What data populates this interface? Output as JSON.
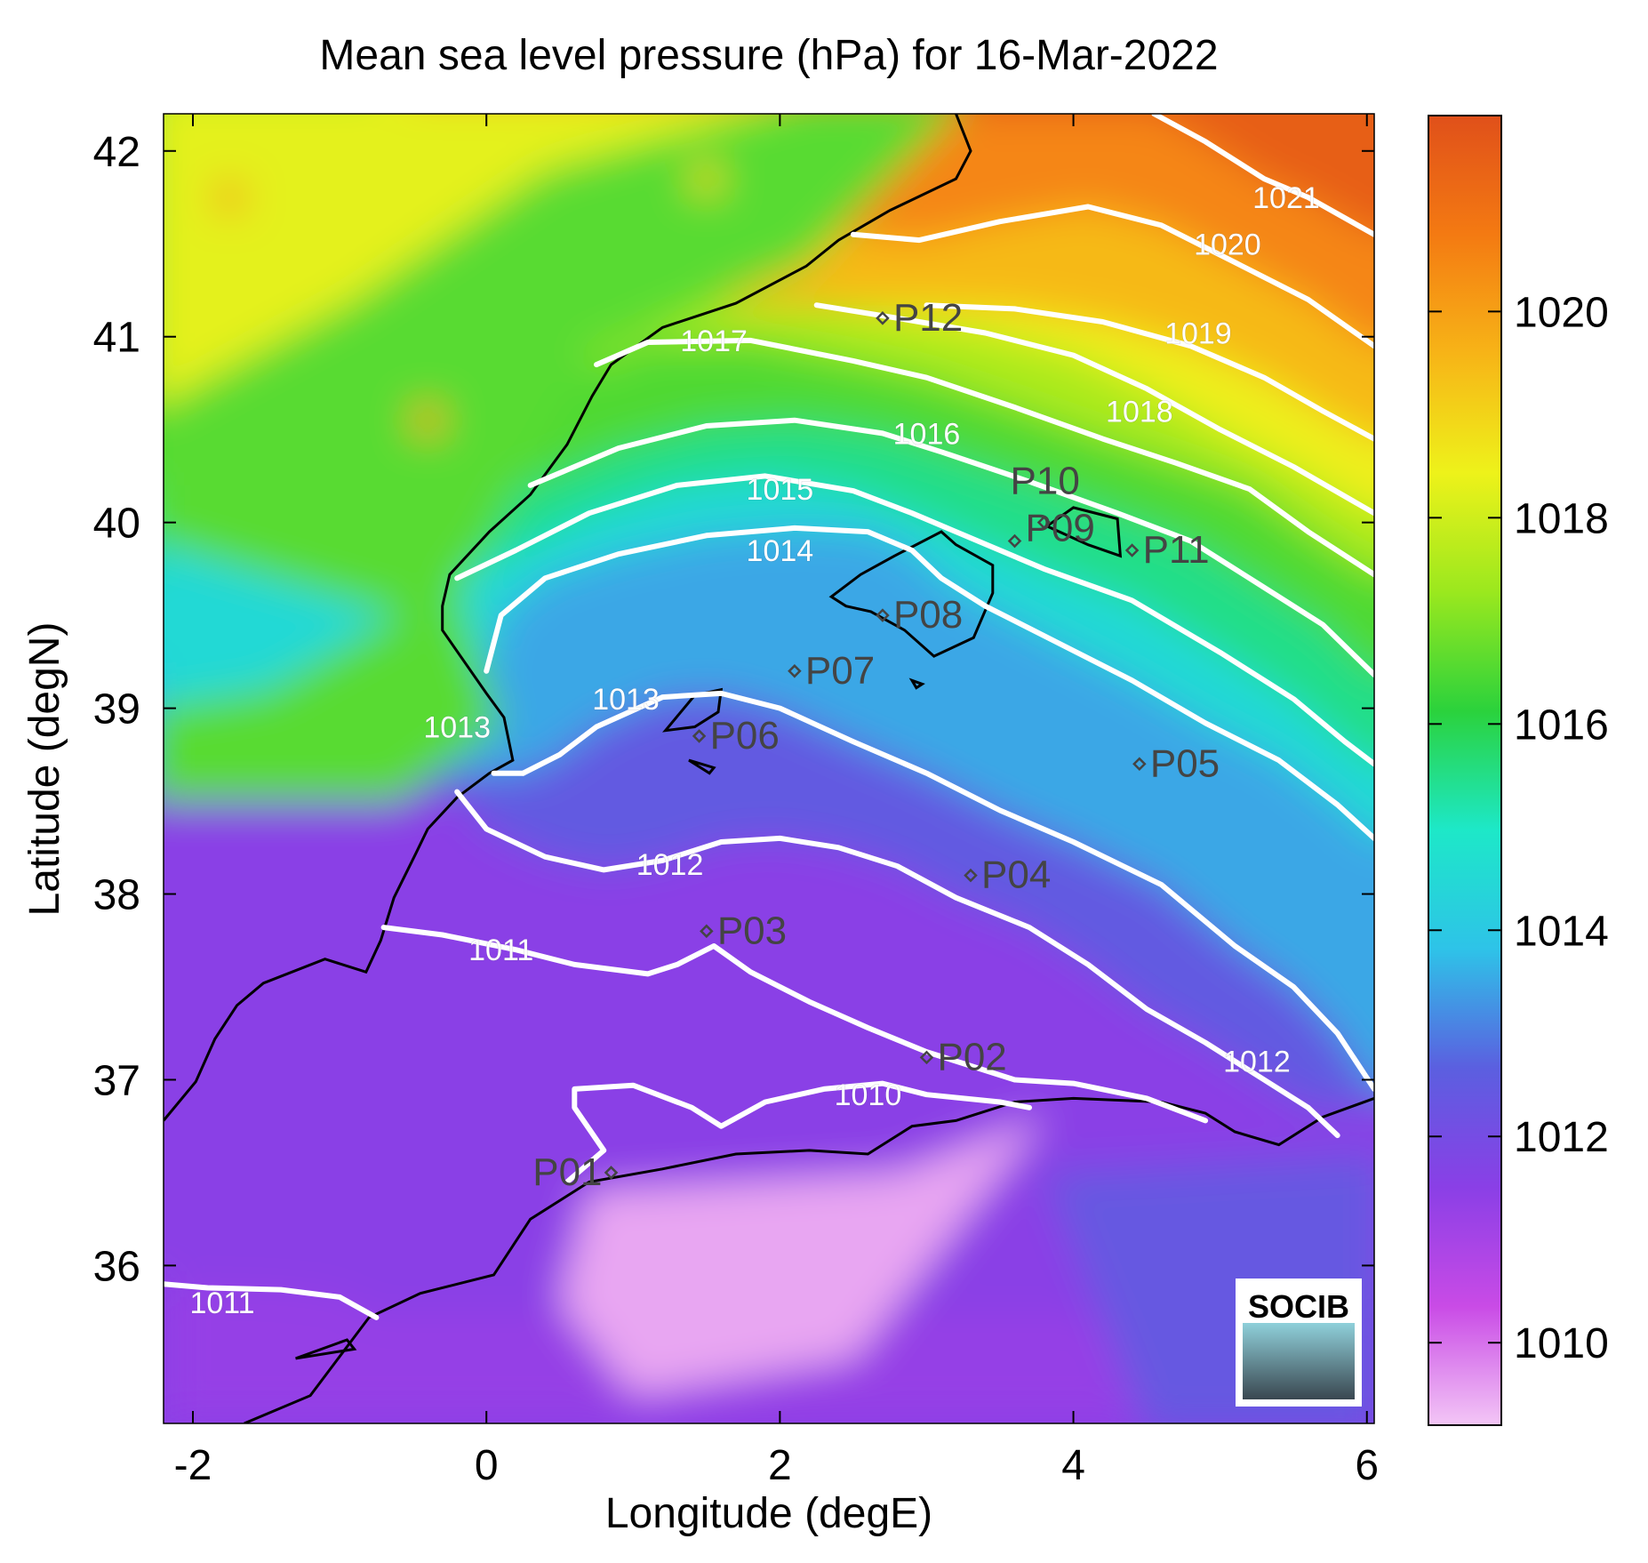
{
  "title": "Mean sea level pressure (hPa) for 16-Mar-2022",
  "chart_data": {
    "type": "heatmap",
    "title": "Mean sea level pressure (hPa) for 16-Mar-2022",
    "xlabel": "Longitude (degE)",
    "ylabel": "Latitude (degN)",
    "xlim": [
      -2.2,
      6.05
    ],
    "ylim": [
      35.15,
      42.2
    ],
    "x_ticks": [
      -2,
      0,
      2,
      4,
      6
    ],
    "x_tick_labels": [
      "-2",
      "0",
      "2",
      "4",
      "6"
    ],
    "y_ticks": [
      36,
      37,
      38,
      39,
      40,
      41,
      42
    ],
    "y_tick_labels": [
      "36",
      "37",
      "38",
      "39",
      "40",
      "41",
      "42"
    ],
    "colorbar": {
      "range": [
        1009.2,
        1021.9
      ],
      "ticks": [
        1010,
        1012,
        1014,
        1016,
        1018,
        1020
      ],
      "tick_labels": [
        "1010",
        "1012",
        "1014",
        "1016",
        "1018",
        "1020"
      ],
      "colormap": [
        "#f3c6f6",
        "#c94be6",
        "#8a3fe6",
        "#5b5fe0",
        "#2ec3e8",
        "#1de8c8",
        "#2bd23c",
        "#9be81e",
        "#eef21a",
        "#f7b417",
        "#f47a12",
        "#e0501a"
      ]
    },
    "grid": false,
    "stations": [
      {
        "name": "P01",
        "lon": 0.85,
        "lat": 36.5
      },
      {
        "name": "P02",
        "lon": 3.0,
        "lat": 37.12
      },
      {
        "name": "P03",
        "lon": 1.5,
        "lat": 37.8
      },
      {
        "name": "P04",
        "lon": 3.3,
        "lat": 38.1
      },
      {
        "name": "P05",
        "lon": 4.45,
        "lat": 38.7
      },
      {
        "name": "P06",
        "lon": 1.45,
        "lat": 38.85
      },
      {
        "name": "P07",
        "lon": 2.1,
        "lat": 39.2
      },
      {
        "name": "P08",
        "lon": 2.7,
        "lat": 39.5
      },
      {
        "name": "P09",
        "lon": 3.6,
        "lat": 39.9
      },
      {
        "name": "P10",
        "lon": 3.8,
        "lat": 40.0
      },
      {
        "name": "P11",
        "lon": 4.4,
        "lat": 39.85
      },
      {
        "name": "P12",
        "lon": 2.7,
        "lat": 41.1
      }
    ],
    "contours": [
      {
        "level": "1010",
        "label_lon": 2.6,
        "label_lat": 36.92,
        "points": [
          [
            0.55,
            36.45
          ],
          [
            0.8,
            36.62
          ],
          [
            0.6,
            36.85
          ],
          [
            0.6,
            36.95
          ],
          [
            1.0,
            36.97
          ],
          [
            1.4,
            36.85
          ],
          [
            1.6,
            36.75
          ],
          [
            1.9,
            36.88
          ],
          [
            2.3,
            36.95
          ],
          [
            2.7,
            36.98
          ],
          [
            3.0,
            36.92
          ],
          [
            3.5,
            36.88
          ],
          [
            3.7,
            36.85
          ]
        ]
      },
      {
        "level": "1011",
        "label_lon": 0.1,
        "label_lat": 37.7,
        "points": [
          [
            -0.7,
            37.82
          ],
          [
            -0.3,
            37.78
          ],
          [
            0.2,
            37.7
          ],
          [
            0.6,
            37.62
          ],
          [
            1.1,
            37.57
          ],
          [
            1.3,
            37.62
          ],
          [
            1.55,
            37.72
          ],
          [
            1.8,
            37.58
          ],
          [
            2.2,
            37.42
          ],
          [
            2.6,
            37.28
          ],
          [
            3.0,
            37.15
          ],
          [
            3.6,
            37.0
          ],
          [
            4.0,
            36.98
          ],
          [
            4.5,
            36.9
          ],
          [
            4.9,
            36.78
          ]
        ]
      },
      {
        "level": "1011",
        "label_lon": -1.8,
        "label_lat": 35.8,
        "points": [
          [
            -2.2,
            35.9
          ],
          [
            -1.9,
            35.88
          ],
          [
            -1.4,
            35.87
          ],
          [
            -1.0,
            35.83
          ],
          [
            -0.75,
            35.72
          ]
        ]
      },
      {
        "level": "1012",
        "label_lon": 1.25,
        "label_lat": 38.16,
        "points": [
          [
            -0.2,
            38.55
          ],
          [
            0.0,
            38.35
          ],
          [
            0.4,
            38.2
          ],
          [
            0.8,
            38.13
          ],
          [
            1.2,
            38.18
          ],
          [
            1.6,
            38.28
          ],
          [
            2.0,
            38.3
          ],
          [
            2.4,
            38.25
          ],
          [
            2.8,
            38.15
          ],
          [
            3.2,
            37.98
          ],
          [
            3.7,
            37.82
          ],
          [
            4.1,
            37.62
          ],
          [
            4.5,
            37.38
          ],
          [
            4.9,
            37.2
          ],
          [
            5.3,
            37.0
          ],
          [
            5.6,
            36.85
          ]
        ]
      },
      {
        "level": "1012",
        "label_lon": 5.25,
        "label_lat": 37.1,
        "points": [
          [
            5.6,
            36.85
          ],
          [
            5.8,
            36.7
          ]
        ]
      },
      {
        "level": "1013",
        "label_lon": 0.95,
        "label_lat": 39.05,
        "points": [
          [
            0.25,
            38.65
          ],
          [
            0.5,
            38.75
          ],
          [
            0.75,
            38.9
          ],
          [
            1.2,
            39.06
          ],
          [
            1.6,
            39.08
          ],
          [
            2.0,
            39.0
          ],
          [
            2.5,
            38.82
          ],
          [
            3.0,
            38.65
          ],
          [
            3.5,
            38.45
          ],
          [
            4.0,
            38.28
          ],
          [
            4.6,
            38.05
          ],
          [
            5.1,
            37.72
          ],
          [
            5.5,
            37.5
          ],
          [
            5.8,
            37.25
          ],
          [
            6.05,
            36.95
          ]
        ]
      },
      {
        "level": "1013",
        "label_lon": -0.2,
        "label_lat": 38.9,
        "points": [
          [
            0.05,
            38.65
          ],
          [
            0.25,
            38.65
          ]
        ]
      },
      {
        "level": "1014",
        "label_lon": 2.0,
        "label_lat": 39.85,
        "points": [
          [
            0.0,
            39.2
          ],
          [
            0.1,
            39.5
          ],
          [
            0.4,
            39.7
          ],
          [
            0.9,
            39.83
          ],
          [
            1.5,
            39.93
          ],
          [
            2.1,
            39.97
          ],
          [
            2.6,
            39.95
          ],
          [
            2.9,
            39.85
          ],
          [
            3.1,
            39.7
          ],
          [
            3.4,
            39.55
          ],
          [
            3.9,
            39.35
          ],
          [
            4.4,
            39.15
          ],
          [
            4.9,
            38.92
          ],
          [
            5.4,
            38.72
          ],
          [
            5.8,
            38.48
          ],
          [
            6.05,
            38.3
          ]
        ]
      },
      {
        "level": "1015",
        "label_lon": 2.0,
        "label_lat": 40.18,
        "points": [
          [
            -0.2,
            39.7
          ],
          [
            0.2,
            39.85
          ],
          [
            0.7,
            40.05
          ],
          [
            1.3,
            40.2
          ],
          [
            1.9,
            40.25
          ],
          [
            2.5,
            40.17
          ],
          [
            2.9,
            40.05
          ],
          [
            3.2,
            39.95
          ],
          [
            3.8,
            39.75
          ],
          [
            4.4,
            39.58
          ],
          [
            5.0,
            39.3
          ],
          [
            5.5,
            39.05
          ],
          [
            5.85,
            38.82
          ],
          [
            6.05,
            38.7
          ]
        ]
      },
      {
        "level": "1016",
        "label_lon": 3.0,
        "label_lat": 40.48,
        "points": [
          [
            0.3,
            40.2
          ],
          [
            0.9,
            40.4
          ],
          [
            1.5,
            40.52
          ],
          [
            2.1,
            40.55
          ],
          [
            2.7,
            40.48
          ],
          [
            3.1,
            40.38
          ],
          [
            3.7,
            40.22
          ],
          [
            4.3,
            40.05
          ],
          [
            4.8,
            39.9
          ],
          [
            5.3,
            39.65
          ],
          [
            5.7,
            39.45
          ],
          [
            6.05,
            39.18
          ]
        ]
      },
      {
        "level": "1017",
        "label_lon": 1.55,
        "label_lat": 40.98,
        "points": [
          [
            0.75,
            40.85
          ],
          [
            1.1,
            40.97
          ],
          [
            1.8,
            40.98
          ],
          [
            2.5,
            40.87
          ],
          [
            3.0,
            40.78
          ],
          [
            3.6,
            40.62
          ],
          [
            4.2,
            40.45
          ],
          [
            4.7,
            40.32
          ],
          [
            5.2,
            40.18
          ],
          [
            5.6,
            39.95
          ],
          [
            6.05,
            39.72
          ]
        ]
      },
      {
        "level": "1018",
        "label_lon": 4.45,
        "label_lat": 40.6,
        "points": [
          [
            2.25,
            41.17
          ],
          [
            2.8,
            41.1
          ],
          [
            3.4,
            41.02
          ],
          [
            4.0,
            40.9
          ],
          [
            4.5,
            40.72
          ],
          [
            5.0,
            40.5
          ],
          [
            5.5,
            40.3
          ],
          [
            6.05,
            40.05
          ]
        ]
      },
      {
        "level": "1019",
        "label_lon": 4.85,
        "label_lat": 41.02,
        "points": [
          [
            3.0,
            41.17
          ],
          [
            3.6,
            41.15
          ],
          [
            4.2,
            41.08
          ],
          [
            4.8,
            40.95
          ],
          [
            5.3,
            40.78
          ],
          [
            5.7,
            40.6
          ],
          [
            6.05,
            40.45
          ]
        ]
      },
      {
        "level": "1020",
        "label_lon": 5.05,
        "label_lat": 41.5,
        "points": [
          [
            2.5,
            41.55
          ],
          [
            2.95,
            41.52
          ],
          [
            3.5,
            41.62
          ],
          [
            4.1,
            41.7
          ],
          [
            4.6,
            41.6
          ],
          [
            5.1,
            41.4
          ],
          [
            5.6,
            41.2
          ],
          [
            6.05,
            40.95
          ]
        ]
      },
      {
        "level": "1021",
        "label_lon": 5.45,
        "label_lat": 41.75,
        "points": [
          [
            4.55,
            42.2
          ],
          [
            4.9,
            42.05
          ],
          [
            5.3,
            41.85
          ],
          [
            5.6,
            41.75
          ],
          [
            6.05,
            41.55
          ]
        ]
      }
    ],
    "coastline": [
      [
        -2.2,
        36.78
      ],
      [
        -1.98,
        36.99
      ],
      [
        -1.85,
        37.22
      ],
      [
        -1.7,
        37.4
      ],
      [
        -1.52,
        37.52
      ],
      [
        -1.1,
        37.65
      ],
      [
        -0.82,
        37.58
      ],
      [
        -0.72,
        37.75
      ],
      [
        -0.63,
        37.98
      ],
      [
        -0.48,
        38.22
      ],
      [
        -0.4,
        38.35
      ],
      [
        -0.2,
        38.52
      ],
      [
        0.02,
        38.65
      ],
      [
        0.18,
        38.72
      ],
      [
        0.12,
        38.95
      ],
      [
        0.0,
        39.08
      ],
      [
        -0.3,
        39.42
      ],
      [
        -0.3,
        39.55
      ],
      [
        -0.25,
        39.72
      ],
      [
        0.02,
        39.95
      ],
      [
        0.3,
        40.15
      ],
      [
        0.55,
        40.42
      ],
      [
        0.72,
        40.68
      ],
      [
        0.85,
        40.85
      ],
      [
        1.2,
        41.05
      ],
      [
        1.7,
        41.18
      ],
      [
        2.18,
        41.38
      ],
      [
        2.4,
        41.52
      ],
      [
        2.75,
        41.68
      ],
      [
        3.2,
        41.85
      ],
      [
        3.3,
        42.0
      ],
      [
        3.2,
        42.2
      ]
    ],
    "islands": [
      {
        "name": "Mallorca",
        "points": [
          [
            2.35,
            39.6
          ],
          [
            2.55,
            39.72
          ],
          [
            2.78,
            39.82
          ],
          [
            3.1,
            39.95
          ],
          [
            3.2,
            39.88
          ],
          [
            3.45,
            39.77
          ],
          [
            3.45,
            39.62
          ],
          [
            3.32,
            39.38
          ],
          [
            3.05,
            39.28
          ],
          [
            2.85,
            39.42
          ],
          [
            2.62,
            39.52
          ],
          [
            2.45,
            39.55
          ],
          [
            2.35,
            39.6
          ]
        ]
      },
      {
        "name": "Menorca",
        "points": [
          [
            3.82,
            39.98
          ],
          [
            4.0,
            40.08
          ],
          [
            4.3,
            40.02
          ],
          [
            4.32,
            39.82
          ],
          [
            4.1,
            39.88
          ],
          [
            3.82,
            39.98
          ]
        ]
      },
      {
        "name": "Ibiza",
        "points": [
          [
            1.22,
            38.88
          ],
          [
            1.42,
            39.07
          ],
          [
            1.6,
            39.1
          ],
          [
            1.58,
            38.98
          ],
          [
            1.42,
            38.9
          ],
          [
            1.22,
            38.88
          ]
        ]
      },
      {
        "name": "Formentera",
        "points": [
          [
            1.38,
            38.72
          ],
          [
            1.55,
            38.68
          ],
          [
            1.52,
            38.65
          ],
          [
            1.38,
            38.72
          ]
        ]
      },
      {
        "name": "Cabrera",
        "points": [
          [
            2.9,
            39.15
          ],
          [
            2.97,
            39.13
          ],
          [
            2.93,
            39.11
          ],
          [
            2.9,
            39.15
          ]
        ]
      },
      {
        "name": "Alboran",
        "points": [
          [
            -1.3,
            35.5
          ],
          [
            -0.95,
            35.6
          ],
          [
            -0.9,
            35.55
          ],
          [
            -1.3,
            35.5
          ]
        ]
      }
    ],
    "africa_coast": [
      [
        -1.65,
        35.15
      ],
      [
        -1.2,
        35.3
      ],
      [
        -0.8,
        35.72
      ],
      [
        -0.45,
        35.85
      ],
      [
        0.05,
        35.95
      ],
      [
        0.3,
        36.25
      ],
      [
        0.7,
        36.45
      ],
      [
        1.2,
        36.52
      ],
      [
        1.7,
        36.6
      ],
      [
        2.2,
        36.62
      ],
      [
        2.6,
        36.6
      ],
      [
        2.9,
        36.75
      ],
      [
        3.2,
        36.78
      ],
      [
        3.6,
        36.88
      ],
      [
        4.0,
        36.9
      ],
      [
        4.6,
        36.88
      ],
      [
        4.9,
        36.82
      ],
      [
        5.1,
        36.72
      ],
      [
        5.4,
        36.65
      ],
      [
        5.7,
        36.8
      ],
      [
        6.05,
        36.9
      ]
    ],
    "highs": [
      {
        "lon": -1.75,
        "lat": 41.75,
        "value": 1020
      },
      {
        "lon": -0.4,
        "lat": 40.55,
        "value": 1020
      },
      {
        "lon": 1.5,
        "lat": 41.85,
        "value": 1019
      }
    ]
  },
  "logo": {
    "text": "SOCIB",
    "color": "#6fc6d4"
  }
}
